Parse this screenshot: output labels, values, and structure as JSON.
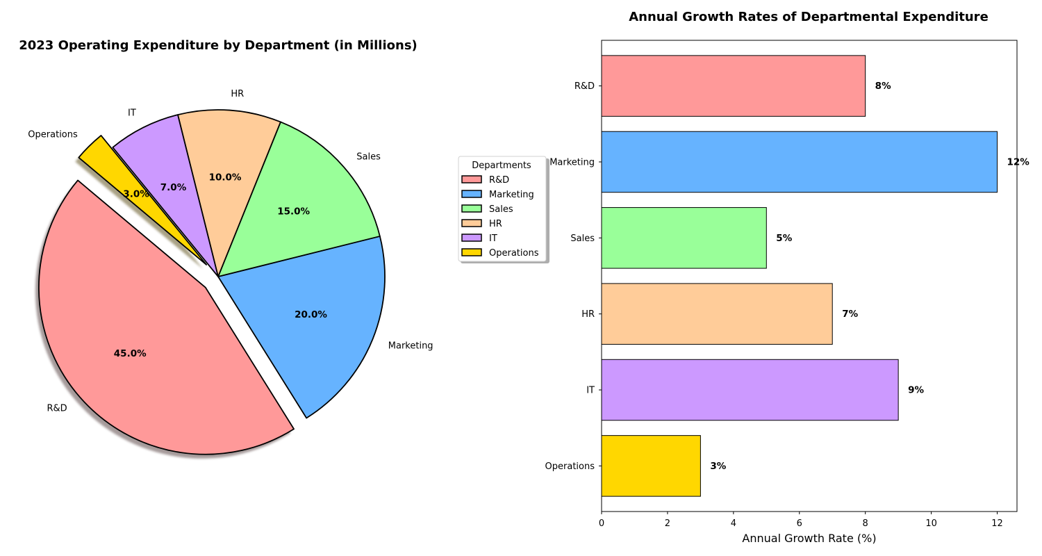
{
  "chart_data": [
    {
      "type": "pie",
      "title": "2023 Operating Expenditure by Department (in Millions)",
      "labels": [
        "R&D",
        "Marketing",
        "Sales",
        "HR",
        "IT",
        "Operations"
      ],
      "values": [
        45.0,
        20.0,
        15.0,
        10.0,
        7.0,
        3.0
      ],
      "value_labels": [
        "45.0%",
        "20.0%",
        "15.0%",
        "10.0%",
        "7.0%",
        "3.0%"
      ],
      "colors": [
        "#ff9999",
        "#66b3ff",
        "#99ff99",
        "#ffcc99",
        "#cc99ff",
        "#ffd700"
      ],
      "exploded": [
        "R&D",
        "Operations"
      ],
      "shadow": true,
      "legend": {
        "title": "Departments",
        "placement": "right of pie",
        "entries": [
          "R&D",
          "Marketing",
          "Sales",
          "HR",
          "IT",
          "Operations"
        ]
      }
    },
    {
      "type": "bar",
      "orientation": "horizontal",
      "title": "Annual Growth Rates of Departmental Expenditure",
      "categories": [
        "R&D",
        "Marketing",
        "Sales",
        "HR",
        "IT",
        "Operations"
      ],
      "values": [
        8,
        12,
        5,
        7,
        9,
        3
      ],
      "value_labels": [
        "8%",
        "12%",
        "5%",
        "7%",
        "9%",
        "3%"
      ],
      "colors": [
        "#ff9999",
        "#66b3ff",
        "#99ff99",
        "#ffcc99",
        "#cc99ff",
        "#ffd700"
      ],
      "xlabel": "Annual Growth Rate (%)",
      "ylabel": "",
      "xlim": [
        0,
        12.6
      ],
      "xticks": [
        0,
        2,
        4,
        6,
        8,
        10,
        12
      ],
      "grid": false
    }
  ]
}
